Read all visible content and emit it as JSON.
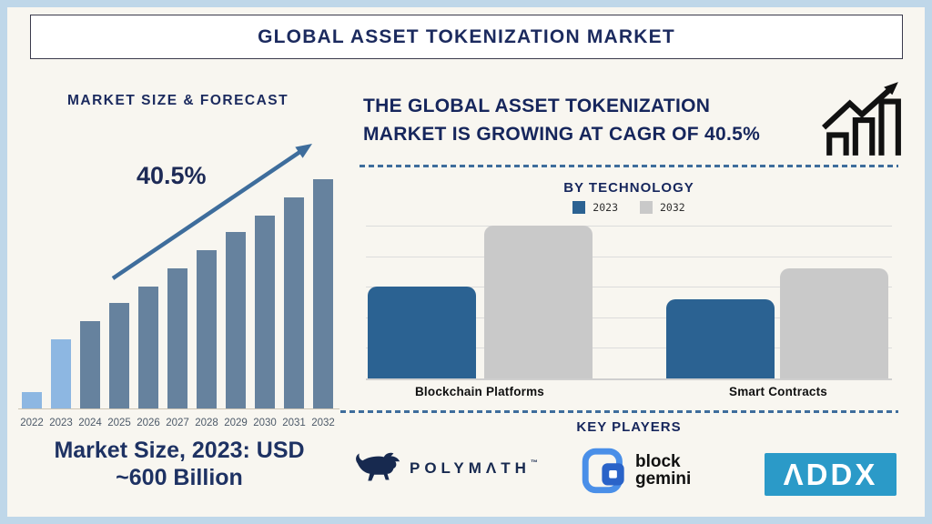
{
  "header": {
    "title": "GLOBAL ASSET TOKENIZATION MARKET"
  },
  "left_panel": {
    "heading": "MARKET SIZE & FORECAST",
    "growth_label": "40.5%",
    "caption_lines": [
      "Market Size, 2023: USD",
      "~600 Billion"
    ]
  },
  "right_panel": {
    "heading_lines": [
      "THE GLOBAL ASSET TOKENIZATION",
      "MARKET IS GROWING AT CAGR OF 40.5%"
    ],
    "by_technology_title": "BY TECHNOLOGY",
    "key_players_title": "KEY PLAYERS"
  },
  "key_players": [
    {
      "name": "Polymath",
      "wordmark": "POLYMΛTH",
      "trademark": "™",
      "icon": "bull-icon",
      "color": "#17294f"
    },
    {
      "name": "Block Gemini",
      "wordmark_lines": [
        "block",
        "gemini"
      ],
      "icon": "interlocked-squares-icon",
      "colors": {
        "outer": "#4a8fe8",
        "inner": "#2a63c8"
      }
    },
    {
      "name": "ADDX",
      "wordmark": "ΛDDX",
      "color": "#2b9ac8"
    }
  ],
  "icons": {
    "cagr_icon": "bar-chart-with-rising-arrow",
    "left_chart_annotation": "diagonal-rising-arrow"
  },
  "colors": {
    "background": "#f8f6f0",
    "frame": "#bfd7e9",
    "navy_text": "#1b2a5e",
    "arrow_and_dashes": "#3e6d9c",
    "forecast_bar": "#66829e",
    "forecast_bar_highlight": "#8db7e2",
    "tech_2023": "#2b6292",
    "tech_2032": "#c9c9c9",
    "gridline": "#dcdcdc"
  },
  "chart_data": [
    {
      "id": "market-size-forecast",
      "type": "bar",
      "title": "MARKET SIZE & FORECAST",
      "categories": [
        "2022",
        "2023",
        "2024",
        "2025",
        "2026",
        "2027",
        "2028",
        "2029",
        "2030",
        "2031",
        "2032"
      ],
      "values_relative_pct_of_2032": [
        7,
        30,
        38,
        46,
        53,
        61,
        69,
        77,
        84,
        92,
        100
      ],
      "y_axis_shown": false,
      "note": "No numeric y-axis; bar heights illustrative of 40.5% CAGR growth",
      "annotation": "40.5%",
      "callout": "Market Size, 2023: USD ~600 Billion",
      "bar_color_default": "#66829e",
      "bar_color_highlight": "#8db7e2",
      "highlighted_categories": [
        "2022",
        "2023"
      ]
    },
    {
      "id": "by-technology",
      "type": "grouped-bar",
      "title": "BY TECHNOLOGY",
      "categories": [
        "Blockchain Platforms",
        "Smart Contracts"
      ],
      "series": [
        {
          "name": "2023",
          "color": "#2b6292",
          "values": [
            3.0,
            2.6
          ]
        },
        {
          "name": "2032",
          "color": "#c9c9c9",
          "values": [
            5.0,
            3.6
          ]
        }
      ],
      "ylim": [
        0,
        5
      ],
      "gridlines": true,
      "legend_position": "top",
      "y_axis_shown": false,
      "note": "Values estimated in gridline units; no numeric axis labels shown"
    }
  ]
}
